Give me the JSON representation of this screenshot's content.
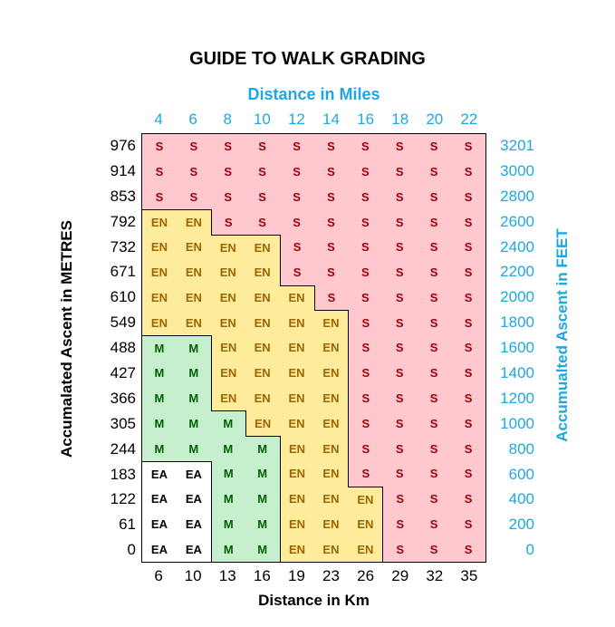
{
  "chart_data": {
    "type": "table",
    "title": "GUIDE TO WALK GRADING",
    "x_top_label": "Distance in Miles",
    "x_top_ticks": [
      "4",
      "6",
      "8",
      "10",
      "12",
      "14",
      "16",
      "18",
      "20",
      "22"
    ],
    "x_bottom_label": "Distance in Km",
    "x_bottom_ticks": [
      "6",
      "10",
      "13",
      "16",
      "19",
      "23",
      "26",
      "29",
      "32",
      "35"
    ],
    "y_left_label": "Accumalated  Ascent in METRES",
    "y_left_ticks": [
      "976",
      "914",
      "853",
      "792",
      "732",
      "671",
      "610",
      "549",
      "488",
      "427",
      "366",
      "305",
      "244",
      "183",
      "122",
      "61",
      "0"
    ],
    "y_right_label": "Accumualted Ascent in FEET",
    "y_right_ticks": [
      "3201",
      "3000",
      "2800",
      "2600",
      "2400",
      "2200",
      "2000",
      "1800",
      "1600",
      "1400",
      "1200",
      "1000",
      "800",
      "600",
      "400",
      "200",
      "0"
    ],
    "grades": [
      [
        "S",
        "S",
        "S",
        "S",
        "S",
        "S",
        "S",
        "S",
        "S",
        "S"
      ],
      [
        "S",
        "S",
        "S",
        "S",
        "S",
        "S",
        "S",
        "S",
        "S",
        "S"
      ],
      [
        "S",
        "S",
        "S",
        "S",
        "S",
        "S",
        "S",
        "S",
        "S",
        "S"
      ],
      [
        "EN",
        "EN",
        "S",
        "S",
        "S",
        "S",
        "S",
        "S",
        "S",
        "S"
      ],
      [
        "EN",
        "EN",
        "EN",
        "EN",
        "S",
        "S",
        "S",
        "S",
        "S",
        "S"
      ],
      [
        "EN",
        "EN",
        "EN",
        "EN",
        "S",
        "S",
        "S",
        "S",
        "S",
        "S"
      ],
      [
        "EN",
        "EN",
        "EN",
        "EN",
        "EN",
        "S",
        "S",
        "S",
        "S",
        "S"
      ],
      [
        "EN",
        "EN",
        "EN",
        "EN",
        "EN",
        "EN",
        "S",
        "S",
        "S",
        "S"
      ],
      [
        "M",
        "M",
        "EN",
        "EN",
        "EN",
        "EN",
        "S",
        "S",
        "S",
        "S"
      ],
      [
        "M",
        "M",
        "EN",
        "EN",
        "EN",
        "EN",
        "S",
        "S",
        "S",
        "S"
      ],
      [
        "M",
        "M",
        "EN",
        "EN",
        "EN",
        "EN",
        "S",
        "S",
        "S",
        "S"
      ],
      [
        "M",
        "M",
        "M",
        "EN",
        "EN",
        "EN",
        "S",
        "S",
        "S",
        "S"
      ],
      [
        "M",
        "M",
        "M",
        "M",
        "EN",
        "EN",
        "S",
        "S",
        "S",
        "S"
      ],
      [
        "EA",
        "EA",
        "M",
        "M",
        "EN",
        "EN",
        "S",
        "S",
        "S",
        "S"
      ],
      [
        "EA",
        "EA",
        "M",
        "M",
        "EN",
        "EN",
        "EN",
        "S",
        "S",
        "S"
      ],
      [
        "EA",
        "EA",
        "M",
        "M",
        "EN",
        "EN",
        "EN",
        "S",
        "S",
        "S"
      ],
      [
        "EA",
        "EA",
        "M",
        "M",
        "EN",
        "EN",
        "EN",
        "S",
        "S",
        "S"
      ]
    ],
    "grade_colors": {
      "S": {
        "bg": "#ffc7ce",
        "fg": "#9c0006"
      },
      "EN": {
        "bg": "#ffeb9c",
        "fg": "#9c6500"
      },
      "M": {
        "bg": "#c6efce",
        "fg": "#006100"
      },
      "EA": {
        "bg": "#ffffff",
        "fg": "#000000"
      }
    },
    "accent_color": "#1ea7e1"
  }
}
